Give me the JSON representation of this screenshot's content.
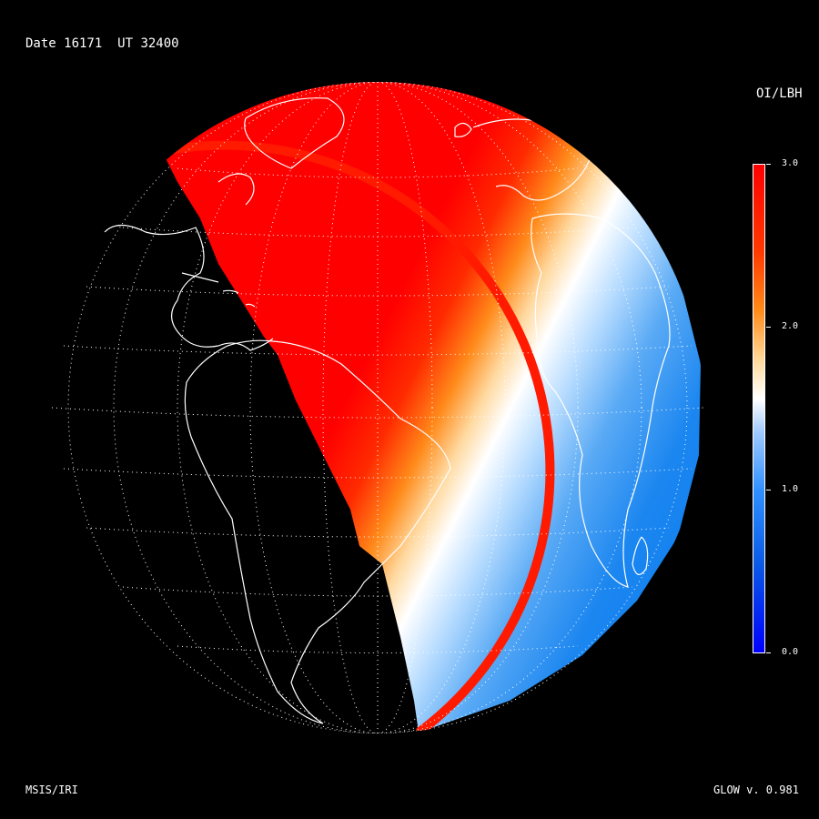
{
  "header": {
    "date_label": "Date 16171",
    "ut_label": "UT 32400"
  },
  "colorbar": {
    "title": "OI/LBH",
    "ticks": [
      "3.0",
      "2.0",
      "1.0",
      "0.0"
    ],
    "colors": {
      "low": "#0000ff",
      "mid_low": "#2e8fff",
      "mid": "#ffffff",
      "mid_high": "#ff8c1a",
      "high": "#ff0000"
    }
  },
  "footer": {
    "model_label": "MSIS/IRI",
    "version_label": "GLOW v. 0.981"
  },
  "map": {
    "type": "orthographic-globe",
    "quantity": "OI/LBH",
    "scale_range": [
      0.0,
      3.0
    ],
    "graticule": "dotted",
    "coastlines": "white",
    "night_side": "black",
    "terminator_gradient": [
      "red",
      "orange",
      "white",
      "light-blue",
      "blue"
    ]
  }
}
